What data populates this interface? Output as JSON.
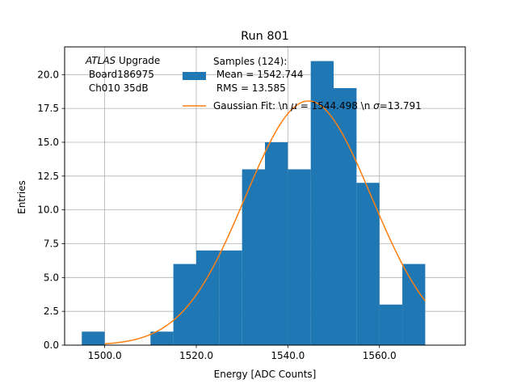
{
  "chart_data": {
    "type": "bar",
    "title": "Run 801",
    "xlabel": "Energy [ADC Counts]",
    "ylabel": "Entries",
    "xlim": [
      1491.25,
      1578.75
    ],
    "ylim": [
      0,
      22.05
    ],
    "xticks": [
      1500,
      1520,
      1540,
      1560
    ],
    "xtick_labels": [
      "1500.0",
      "1520.0",
      "1540.0",
      "1560.0"
    ],
    "yticks": [
      0,
      2.5,
      5,
      7.5,
      10,
      12.5,
      15,
      17.5,
      20
    ],
    "ytick_labels": [
      "0.0",
      "2.5",
      "5.0",
      "7.5",
      "10.0",
      "12.5",
      "15.0",
      "17.5",
      "20.0"
    ],
    "grid": true,
    "histogram": {
      "name": "Samples (124):\n Mean = 1542.744\n RMS = 13.585",
      "color": "#1f77b4",
      "bin_edges": [
        1495,
        1500,
        1505,
        1510,
        1515,
        1520,
        1525,
        1530,
        1535,
        1540,
        1545,
        1550,
        1555,
        1560,
        1565,
        1570
      ],
      "counts": [
        1,
        0,
        0,
        1,
        6,
        7,
        7,
        13,
        15,
        13,
        21,
        19,
        12,
        3,
        6
      ]
    },
    "fit": {
      "name": "Gaussian Fit: \\n $\\mu$ = 1544.498 \\n $\\sigma$=13.791",
      "color": "#ff7f0e",
      "mu": 1544.498,
      "sigma": 13.791,
      "amplitude": 18.05,
      "x_range": [
        1500,
        1570
      ]
    },
    "annotation": {
      "line1_italic": "ATLAS",
      "line1_rest": " Upgrade",
      "line2": " Board186975",
      "line3": " Ch010 35dB"
    },
    "legend": {
      "placement": "top-right",
      "samples_lines": [
        "Samples (124):",
        " Mean = 1542.744",
        " RMS = 13.585"
      ],
      "fit_prefix": "Gaussian Fit: \\n ",
      "fit_mu": "μ",
      "fit_mid": " = 1544.498 \\n ",
      "fit_sigma": "σ",
      "fit_suffix": "=13.791"
    }
  }
}
